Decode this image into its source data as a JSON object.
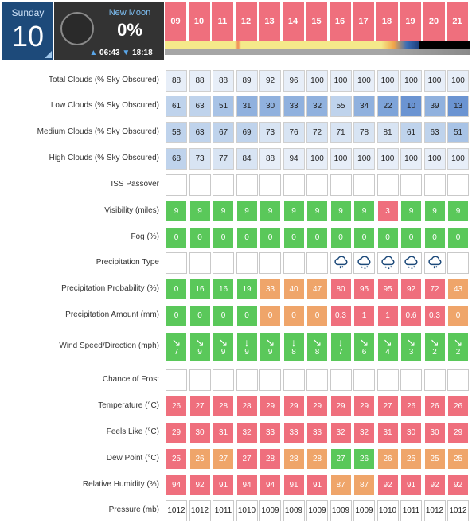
{
  "date": {
    "day_name": "Sunday",
    "day_number": "10"
  },
  "moon": {
    "phase": "New Moon",
    "illumination": "0%",
    "rise": "06:43",
    "set": "18:18"
  },
  "hours": [
    "09",
    "10",
    "11",
    "12",
    "13",
    "14",
    "15",
    "16",
    "17",
    "18",
    "19",
    "20",
    "21"
  ],
  "rows": [
    {
      "label": "Total Clouds (% Sky Obscured)",
      "kind": "cloud",
      "values": [
        "88",
        "88",
        "88",
        "89",
        "92",
        "96",
        "100",
        "100",
        "100",
        "100",
        "100",
        "100",
        "100"
      ]
    },
    {
      "label": "Low Clouds (% Sky Obscured)",
      "kind": "cloud",
      "values": [
        "61",
        "63",
        "51",
        "31",
        "30",
        "33",
        "32",
        "55",
        "34",
        "22",
        "10",
        "39",
        "13"
      ]
    },
    {
      "label": "Medium Clouds (% Sky Obscured)",
      "kind": "cloud",
      "values": [
        "58",
        "63",
        "67",
        "69",
        "73",
        "76",
        "72",
        "71",
        "78",
        "81",
        "61",
        "63",
        "51"
      ]
    },
    {
      "label": "High Clouds (% Sky Obscured)",
      "kind": "cloud",
      "values": [
        "68",
        "73",
        "77",
        "84",
        "88",
        "94",
        "100",
        "100",
        "100",
        "100",
        "100",
        "100",
        "100"
      ]
    },
    {
      "label": "ISS Passover",
      "kind": "empty",
      "values": [
        "",
        "",
        "",
        "",
        "",
        "",
        "",
        "",
        "",
        "",
        "",
        "",
        ""
      ]
    },
    {
      "label": "Visibility (miles)",
      "kind": "vis",
      "values": [
        "9",
        "9",
        "9",
        "9",
        "9",
        "9",
        "9",
        "9",
        "9",
        "3",
        "9",
        "9",
        "9"
      ]
    },
    {
      "label": "Fog (%)",
      "kind": "green",
      "values": [
        "0",
        "0",
        "0",
        "0",
        "0",
        "0",
        "0",
        "0",
        "0",
        "0",
        "0",
        "0",
        "0"
      ]
    },
    {
      "label": "Precipitation Type",
      "kind": "ptype",
      "values": [
        "",
        "",
        "",
        "",
        "",
        "",
        "",
        "shower-cloud-icon",
        "drizzle-cloud-icon",
        "drizzle-cloud-icon",
        "drizzle-cloud-icon",
        "shower-cloud-icon",
        ""
      ]
    },
    {
      "label": "Precipitation Probability (%)",
      "kind": "pprob",
      "values": [
        "0",
        "16",
        "16",
        "19",
        "33",
        "40",
        "47",
        "80",
        "95",
        "95",
        "92",
        "72",
        "43"
      ]
    },
    {
      "label": "Precipitation Amount (mm)",
      "kind": "pamt",
      "values": [
        "0",
        "0",
        "0",
        "0",
        "0",
        "0",
        "0",
        "0.3",
        "1",
        "1",
        "0.6",
        "0.3",
        "0"
      ]
    },
    {
      "label": "Wind Speed/Direction (mph)",
      "kind": "wind",
      "values": [
        "7",
        "9",
        "9",
        "9",
        "9",
        "8",
        "8",
        "7",
        "6",
        "4",
        "3",
        "2",
        "2"
      ],
      "arrows": [
        "↘",
        "↘",
        "↘",
        "↓",
        "↘",
        "↓",
        "↘",
        "↓",
        "↘",
        "↘",
        "↘",
        "↘",
        "↘"
      ]
    },
    {
      "label": "Chance of Frost",
      "kind": "empty",
      "values": [
        "",
        "",
        "",
        "",
        "",
        "",
        "",
        "",
        "",
        "",
        "",
        "",
        ""
      ]
    },
    {
      "label": "Temperature (°C)",
      "kind": "red",
      "values": [
        "26",
        "27",
        "28",
        "28",
        "29",
        "29",
        "29",
        "29",
        "29",
        "27",
        "26",
        "26",
        "26"
      ]
    },
    {
      "label": "Feels Like (°C)",
      "kind": "red",
      "values": [
        "29",
        "30",
        "31",
        "32",
        "33",
        "33",
        "33",
        "32",
        "32",
        "31",
        "30",
        "30",
        "29"
      ]
    },
    {
      "label": "Dew Point (°C)",
      "kind": "dew",
      "values": [
        "25",
        "26",
        "27",
        "27",
        "28",
        "28",
        "28",
        "27",
        "26",
        "26",
        "25",
        "25",
        "25"
      ]
    },
    {
      "label": "Relative Humidity (%)",
      "kind": "hum",
      "values": [
        "94",
        "92",
        "91",
        "94",
        "94",
        "91",
        "91",
        "87",
        "87",
        "92",
        "91",
        "92",
        "92"
      ]
    },
    {
      "label": "Pressure (mb)",
      "kind": "empty",
      "values": [
        "1012",
        "1012",
        "1011",
        "1010",
        "1009",
        "1009",
        "1009",
        "1009",
        "1009",
        "1010",
        "1011",
        "1012",
        "1012"
      ]
    }
  ],
  "colors": {
    "good": "#5ac85a",
    "moderate": "#efa56a",
    "bad": "#ef6f7d",
    "header": "#1d4a7a",
    "moon_bg": "#333333"
  }
}
